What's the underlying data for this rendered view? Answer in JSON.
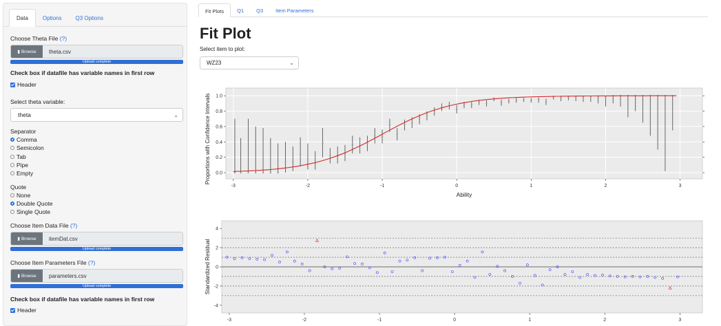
{
  "sidebar": {
    "tabs": [
      "Data",
      "Options",
      "Q3 Options"
    ],
    "theta_file_label": "Choose Theta File",
    "help": "(?)",
    "browse": "Browse",
    "theta_file": "theta.csv",
    "upload_complete": "Upload complete",
    "varnames_label": "Check box if datafile has variable names in first row",
    "header_label": "Header",
    "theta_var_label": "Select theta variable:",
    "theta_var": "theta",
    "separator_label": "Separator",
    "separators": [
      "Comma",
      "Semicolon",
      "Tab",
      "Pipe",
      "Empty"
    ],
    "quote_label": "Quote",
    "quotes": [
      "None",
      "Double Quote",
      "Single Quote"
    ],
    "item_data_label": "Choose Item Data File",
    "item_data_file": "itemDat.csv",
    "item_params_label": "Choose Item Parameters File",
    "item_params_file": "parameters.csv",
    "varnames_label2": "Check box if datafile has variable names in first row",
    "header_label2": "Header"
  },
  "main": {
    "tabs": [
      "Fit Plots",
      "Q1",
      "Q3",
      "Item Parameters"
    ],
    "title": "Fit Plot",
    "select_label": "Select item to plot:",
    "selected_item": "WZ23"
  },
  "chart_data": [
    {
      "type": "line",
      "title": "",
      "xlabel": "Ability",
      "ylabel": "Proportions with Confidence Intervals",
      "xlim": [
        -3.1,
        3.3
      ],
      "ylim": [
        -0.08,
        1.1
      ],
      "xticks": [
        -3,
        -2,
        -1,
        0,
        1,
        2,
        3
      ],
      "yticks": [
        0.0,
        0.2,
        0.4,
        0.6,
        0.8,
        1.0
      ],
      "curve": {
        "a": 2.1,
        "b": -1.0,
        "color": "#d62728"
      },
      "points": [
        {
          "x": -2.98,
          "y": 0.0,
          "lo": 0.0,
          "hi": 0.7
        },
        {
          "x": -2.9,
          "y": 0.0,
          "lo": 0.0,
          "hi": 0.45
        },
        {
          "x": -2.8,
          "y": 0.0,
          "lo": 0.0,
          "hi": 0.7
        },
        {
          "x": -2.7,
          "y": 0.0,
          "lo": 0.0,
          "hi": 0.6
        },
        {
          "x": -2.6,
          "y": 0.0,
          "lo": 0.0,
          "hi": 0.58
        },
        {
          "x": -2.5,
          "y": 0.0,
          "lo": 0.0,
          "hi": 0.45
        },
        {
          "x": -2.4,
          "y": 0.0,
          "lo": 0.0,
          "hi": 0.38
        },
        {
          "x": -2.3,
          "y": 0.14,
          "lo": 0.0,
          "hi": 0.4
        },
        {
          "x": -2.2,
          "y": 0.14,
          "lo": 0.02,
          "hi": 0.34
        },
        {
          "x": -2.1,
          "y": 0.24,
          "lo": 0.08,
          "hi": 0.46
        },
        {
          "x": -2.0,
          "y": 0.18,
          "lo": 0.04,
          "hi": 0.38
        },
        {
          "x": -1.9,
          "y": 0.12,
          "lo": 0.04,
          "hi": 0.28
        },
        {
          "x": -1.8,
          "y": 0.38,
          "lo": 0.2,
          "hi": 0.58
        },
        {
          "x": -1.7,
          "y": 0.22,
          "lo": 0.12,
          "hi": 0.32
        },
        {
          "x": -1.6,
          "y": 0.22,
          "lo": 0.12,
          "hi": 0.34
        },
        {
          "x": -1.5,
          "y": 0.25,
          "lo": 0.15,
          "hi": 0.36
        },
        {
          "x": -1.4,
          "y": 0.36,
          "lo": 0.25,
          "hi": 0.48
        },
        {
          "x": -1.3,
          "y": 0.35,
          "lo": 0.25,
          "hi": 0.46
        },
        {
          "x": -1.2,
          "y": 0.38,
          "lo": 0.28,
          "hi": 0.48
        },
        {
          "x": -1.1,
          "y": 0.48,
          "lo": 0.38,
          "hi": 0.58
        },
        {
          "x": -1.0,
          "y": 0.47,
          "lo": 0.38,
          "hi": 0.56
        },
        {
          "x": -0.9,
          "y": 0.62,
          "lo": 0.53,
          "hi": 0.7
        },
        {
          "x": -0.8,
          "y": 0.5,
          "lo": 0.42,
          "hi": 0.58
        },
        {
          "x": -0.7,
          "y": 0.62,
          "lo": 0.55,
          "hi": 0.69
        },
        {
          "x": -0.6,
          "y": 0.65,
          "lo": 0.58,
          "hi": 0.72
        },
        {
          "x": -0.5,
          "y": 0.7,
          "lo": 0.63,
          "hi": 0.76
        },
        {
          "x": -0.4,
          "y": 0.74,
          "lo": 0.68,
          "hi": 0.8
        },
        {
          "x": -0.3,
          "y": 0.8,
          "lo": 0.74,
          "hi": 0.85
        },
        {
          "x": -0.2,
          "y": 0.85,
          "lo": 0.8,
          "hi": 0.9
        },
        {
          "x": -0.1,
          "y": 0.87,
          "lo": 0.82,
          "hi": 0.92
        },
        {
          "x": 0.0,
          "y": 0.82,
          "lo": 0.77,
          "hi": 0.88
        },
        {
          "x": 0.1,
          "y": 0.88,
          "lo": 0.84,
          "hi": 0.92
        },
        {
          "x": 0.2,
          "y": 0.88,
          "lo": 0.84,
          "hi": 0.92
        },
        {
          "x": 0.3,
          "y": 0.92,
          "lo": 0.88,
          "hi": 0.95
        },
        {
          "x": 0.4,
          "y": 0.9,
          "lo": 0.86,
          "hi": 0.94
        },
        {
          "x": 0.5,
          "y": 0.96,
          "lo": 0.93,
          "hi": 0.98
        },
        {
          "x": 0.6,
          "y": 0.91,
          "lo": 0.87,
          "hi": 0.95
        },
        {
          "x": 0.7,
          "y": 0.93,
          "lo": 0.9,
          "hi": 0.96
        },
        {
          "x": 0.8,
          "y": 0.94,
          "lo": 0.91,
          "hi": 0.97
        },
        {
          "x": 0.9,
          "y": 0.95,
          "lo": 0.92,
          "hi": 0.97
        },
        {
          "x": 1.0,
          "y": 0.94,
          "lo": 0.91,
          "hi": 0.97
        },
        {
          "x": 1.1,
          "y": 0.95,
          "lo": 0.91,
          "hi": 0.98
        },
        {
          "x": 1.2,
          "y": 0.92,
          "lo": 0.88,
          "hi": 0.96
        },
        {
          "x": 1.3,
          "y": 0.98,
          "lo": 0.95,
          "hi": 1.0
        },
        {
          "x": 1.4,
          "y": 0.97,
          "lo": 0.93,
          "hi": 1.0
        },
        {
          "x": 1.5,
          "y": 0.98,
          "lo": 0.94,
          "hi": 1.0
        },
        {
          "x": 1.6,
          "y": 0.99,
          "lo": 0.93,
          "hi": 1.0
        },
        {
          "x": 1.7,
          "y": 0.99,
          "lo": 0.92,
          "hi": 1.0
        },
        {
          "x": 1.8,
          "y": 0.99,
          "lo": 0.92,
          "hi": 1.0
        },
        {
          "x": 1.9,
          "y": 0.98,
          "lo": 0.9,
          "hi": 1.0
        },
        {
          "x": 2.0,
          "y": 0.99,
          "lo": 0.86,
          "hi": 1.0
        },
        {
          "x": 2.1,
          "y": 1.0,
          "lo": 0.9,
          "hi": 1.0
        },
        {
          "x": 2.2,
          "y": 1.0,
          "lo": 0.86,
          "hi": 1.0
        },
        {
          "x": 2.3,
          "y": 1.0,
          "lo": 0.72,
          "hi": 1.0
        },
        {
          "x": 2.4,
          "y": 1.0,
          "lo": 0.8,
          "hi": 1.0
        },
        {
          "x": 2.5,
          "y": 1.0,
          "lo": 0.65,
          "hi": 1.0
        },
        {
          "x": 2.6,
          "y": 1.0,
          "lo": 0.48,
          "hi": 1.0
        },
        {
          "x": 2.7,
          "y": 1.0,
          "lo": 0.3,
          "hi": 1.0
        },
        {
          "x": 2.8,
          "y": 1.0,
          "lo": 0.02,
          "hi": 1.0
        },
        {
          "x": 2.9,
          "y": 1.0,
          "lo": 0.55,
          "hi": 1.0
        }
      ]
    },
    {
      "type": "scatter",
      "title": "",
      "xlabel": "",
      "ylabel": "Standardized Residual",
      "xlim": [
        -3.1,
        3.3
      ],
      "ylim": [
        -4.8,
        4.8
      ],
      "xticks": [
        -3,
        -2,
        -1,
        0,
        1,
        2,
        3
      ],
      "yticks": [
        -4,
        -2,
        0,
        2,
        4
      ],
      "dashed_lines": [
        -3,
        -2,
        -1,
        1,
        2,
        3
      ],
      "points_color": "#4040ff",
      "flag_color": "#e04040",
      "points": [
        {
          "x": -3.03,
          "y": 1.0
        },
        {
          "x": -2.93,
          "y": 0.85
        },
        {
          "x": -2.83,
          "y": 0.95
        },
        {
          "x": -2.73,
          "y": 0.85
        },
        {
          "x": -2.63,
          "y": 0.8
        },
        {
          "x": -2.53,
          "y": 0.75
        },
        {
          "x": -2.43,
          "y": 1.2
        },
        {
          "x": -2.33,
          "y": 0.5
        },
        {
          "x": -2.23,
          "y": 1.55
        },
        {
          "x": -2.13,
          "y": 0.6
        },
        {
          "x": -2.03,
          "y": 0.3
        },
        {
          "x": -1.93,
          "y": -0.4
        },
        {
          "x": -1.83,
          "y": 2.75,
          "flag": true
        },
        {
          "x": -1.73,
          "y": 0.0
        },
        {
          "x": -1.63,
          "y": -0.2
        },
        {
          "x": -1.53,
          "y": -0.15
        },
        {
          "x": -1.43,
          "y": 1.05
        },
        {
          "x": -1.33,
          "y": 0.35
        },
        {
          "x": -1.23,
          "y": 0.3
        },
        {
          "x": -1.13,
          "y": -0.1
        },
        {
          "x": -1.03,
          "y": -0.6
        },
        {
          "x": -0.93,
          "y": 1.45
        },
        {
          "x": -0.83,
          "y": -0.5
        },
        {
          "x": -0.73,
          "y": 0.6
        },
        {
          "x": -0.63,
          "y": 0.7
        },
        {
          "x": -0.53,
          "y": 0.95
        },
        {
          "x": -0.43,
          "y": -0.4
        },
        {
          "x": -0.33,
          "y": 0.9
        },
        {
          "x": -0.23,
          "y": 0.95
        },
        {
          "x": -0.13,
          "y": 1.0
        },
        {
          "x": -0.03,
          "y": -0.5
        },
        {
          "x": 0.07,
          "y": 0.15
        },
        {
          "x": 0.17,
          "y": 0.6
        },
        {
          "x": 0.27,
          "y": -1.1
        },
        {
          "x": 0.37,
          "y": 1.55
        },
        {
          "x": 0.47,
          "y": -0.8
        },
        {
          "x": 0.57,
          "y": 0.05
        },
        {
          "x": 0.67,
          "y": -0.4
        },
        {
          "x": 0.77,
          "y": -1.0
        },
        {
          "x": 0.87,
          "y": -1.7
        },
        {
          "x": 0.97,
          "y": 0.2
        },
        {
          "x": 1.07,
          "y": -0.9
        },
        {
          "x": 1.17,
          "y": -1.9
        },
        {
          "x": 1.27,
          "y": -0.3
        },
        {
          "x": 1.37,
          "y": 0.0
        },
        {
          "x": 1.47,
          "y": -0.8
        },
        {
          "x": 1.57,
          "y": -0.5
        },
        {
          "x": 1.67,
          "y": -1.1
        },
        {
          "x": 1.77,
          "y": -0.8
        },
        {
          "x": 1.87,
          "y": -0.9
        },
        {
          "x": 1.97,
          "y": -0.85
        },
        {
          "x": 2.07,
          "y": -0.95
        },
        {
          "x": 2.17,
          "y": -1.0
        },
        {
          "x": 2.27,
          "y": -1.05
        },
        {
          "x": 2.37,
          "y": -1.0
        },
        {
          "x": 2.47,
          "y": -1.05
        },
        {
          "x": 2.57,
          "y": -1.0
        },
        {
          "x": 2.67,
          "y": -1.1
        },
        {
          "x": 2.77,
          "y": -1.2
        },
        {
          "x": 2.87,
          "y": -2.2,
          "flag": true
        },
        {
          "x": 2.97,
          "y": -1.05
        }
      ]
    }
  ]
}
